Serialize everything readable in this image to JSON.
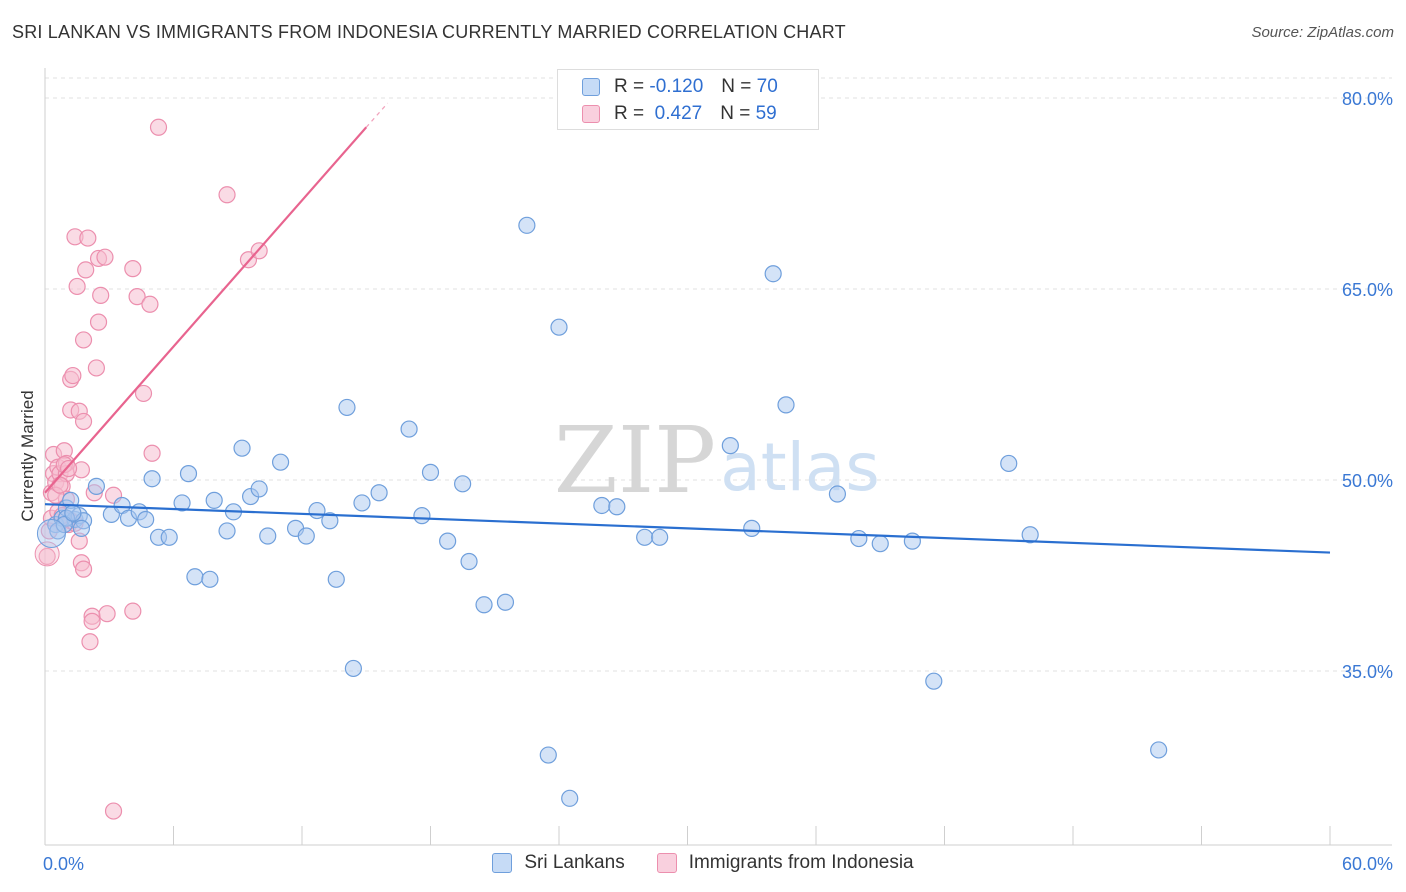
{
  "header": {
    "title": "SRI LANKAN VS IMMIGRANTS FROM INDONESIA CURRENTLY MARRIED CORRELATION CHART",
    "source": "Source: ZipAtlas.com"
  },
  "watermark": {
    "zip": "ZIP",
    "atlas": "atlas"
  },
  "legend": {
    "rows": [
      {
        "r_label": "R =",
        "r_value": "-0.120",
        "n_label": "N =",
        "n_value": "70"
      },
      {
        "r_label": "R =",
        "r_value": "0.427",
        "n_label": "N =",
        "n_value": "59"
      }
    ]
  },
  "bottom_legend": {
    "a": "Sri Lankans",
    "b": "Immigrants from Indonesia"
  },
  "colors": {
    "blue_fill": "#a9c8f0",
    "blue_stroke": "#6f9fdc",
    "blue_line": "#2a6fd0",
    "pink_fill": "#f6bdd0",
    "pink_stroke": "#ec8fae",
    "pink_line": "#e8648f",
    "tick_label": "#3a78d4",
    "grid": "#e2e2e2"
  },
  "chart_data": {
    "type": "scatter",
    "title": "SRI LANKAN VS IMMIGRANTS FROM INDONESIA CURRENTLY MARRIED CORRELATION CHART",
    "xlabel": "",
    "ylabel": "Currently Married",
    "xlim": [
      0,
      60
    ],
    "ylim": [
      20,
      82
    ],
    "x_tick_labels": [
      "0.0%",
      "60.0%"
    ],
    "y_ticks": [
      {
        "value": 80,
        "label": "80.0%"
      },
      {
        "value": 65,
        "label": "65.0%"
      },
      {
        "value": 50,
        "label": "50.0%"
      },
      {
        "value": 35,
        "label": "35.0%"
      }
    ],
    "grid": true,
    "legend_position": "top-center",
    "series": [
      {
        "name": "Sri Lankans",
        "r": -0.12,
        "n": 70,
        "trend": {
          "x": [
            0,
            60
          ],
          "y": [
            48.1,
            44.3
          ]
        },
        "points": [
          [
            0.5,
            46.5
          ],
          [
            0.8,
            47.0
          ],
          [
            1.0,
            47.8
          ],
          [
            1.2,
            48.4
          ],
          [
            1.4,
            46.9
          ],
          [
            1.6,
            47.2
          ],
          [
            1.8,
            46.8
          ],
          [
            2.4,
            49.5
          ],
          [
            3.1,
            47.3
          ],
          [
            3.6,
            48.0
          ],
          [
            3.9,
            47.0
          ],
          [
            4.4,
            47.5
          ],
          [
            4.7,
            46.9
          ],
          [
            5.0,
            50.1
          ],
          [
            5.3,
            45.5
          ],
          [
            5.8,
            45.5
          ],
          [
            6.4,
            48.2
          ],
          [
            6.7,
            50.5
          ],
          [
            7.0,
            42.4
          ],
          [
            7.7,
            42.2
          ],
          [
            7.9,
            48.4
          ],
          [
            8.5,
            46.0
          ],
          [
            8.8,
            47.5
          ],
          [
            9.2,
            52.5
          ],
          [
            9.6,
            48.7
          ],
          [
            10.0,
            49.3
          ],
          [
            10.4,
            45.6
          ],
          [
            11.0,
            51.4
          ],
          [
            11.7,
            46.2
          ],
          [
            12.2,
            45.6
          ],
          [
            12.7,
            47.6
          ],
          [
            13.3,
            46.8
          ],
          [
            13.6,
            42.2
          ],
          [
            14.1,
            55.7
          ],
          [
            14.4,
            35.2
          ],
          [
            14.8,
            48.2
          ],
          [
            15.6,
            49.0
          ],
          [
            17.0,
            54.0
          ],
          [
            17.6,
            47.2
          ],
          [
            18.0,
            50.6
          ],
          [
            18.8,
            45.2
          ],
          [
            19.5,
            49.7
          ],
          [
            19.8,
            43.6
          ],
          [
            20.5,
            40.2
          ],
          [
            21.5,
            40.4
          ],
          [
            22.5,
            70.0
          ],
          [
            23.5,
            28.4
          ],
          [
            24.0,
            62.0
          ],
          [
            24.5,
            25.0
          ],
          [
            26.0,
            48.0
          ],
          [
            26.7,
            47.9
          ],
          [
            28.0,
            45.5
          ],
          [
            28.7,
            45.5
          ],
          [
            32.0,
            52.7
          ],
          [
            33.0,
            46.2
          ],
          [
            34.0,
            66.2
          ],
          [
            34.6,
            55.9
          ],
          [
            37.0,
            48.9
          ],
          [
            38.0,
            45.4
          ],
          [
            39.0,
            45.0
          ],
          [
            40.5,
            45.2
          ],
          [
            41.5,
            34.2
          ],
          [
            45.0,
            51.3
          ],
          [
            46.0,
            45.7
          ],
          [
            52.0,
            28.8
          ],
          [
            1.0,
            47.0
          ],
          [
            0.6,
            46.0
          ],
          [
            0.9,
            46.5
          ],
          [
            1.3,
            47.4
          ],
          [
            1.7,
            46.2
          ]
        ]
      },
      {
        "name": "Immigrants from Indonesia",
        "r": 0.427,
        "n": 59,
        "trend": {
          "x": [
            0,
            15
          ],
          "y": [
            49.0,
            77.7
          ]
        },
        "trend_dashed": {
          "x": [
            15,
            16
          ],
          "y": [
            77.7,
            79.6
          ]
        },
        "points": [
          [
            0.1,
            44.0
          ],
          [
            0.2,
            46.0
          ],
          [
            0.3,
            47.0
          ],
          [
            0.3,
            49.0
          ],
          [
            0.4,
            50.5
          ],
          [
            0.4,
            52.0
          ],
          [
            0.5,
            49.8
          ],
          [
            0.6,
            51.0
          ],
          [
            0.7,
            50.5
          ],
          [
            0.8,
            49.5
          ],
          [
            0.9,
            52.3
          ],
          [
            1.0,
            51.3
          ],
          [
            1.0,
            50.5
          ],
          [
            1.1,
            46.5
          ],
          [
            1.2,
            57.9
          ],
          [
            1.2,
            55.5
          ],
          [
            1.3,
            58.2
          ],
          [
            1.4,
            69.1
          ],
          [
            1.5,
            65.2
          ],
          [
            1.6,
            55.4
          ],
          [
            1.6,
            45.2
          ],
          [
            1.7,
            43.5
          ],
          [
            1.8,
            54.6
          ],
          [
            1.8,
            61.0
          ],
          [
            1.9,
            66.5
          ],
          [
            2.0,
            69.0
          ],
          [
            2.1,
            37.3
          ],
          [
            2.2,
            39.3
          ],
          [
            2.2,
            38.9
          ],
          [
            2.3,
            49.0
          ],
          [
            2.4,
            58.8
          ],
          [
            2.5,
            62.4
          ],
          [
            2.5,
            67.4
          ],
          [
            2.6,
            64.5
          ],
          [
            2.8,
            67.5
          ],
          [
            2.9,
            39.5
          ],
          [
            3.2,
            48.8
          ],
          [
            3.2,
            24.0
          ],
          [
            4.1,
            66.6
          ],
          [
            4.1,
            39.7
          ],
          [
            4.3,
            64.4
          ],
          [
            4.6,
            56.8
          ],
          [
            4.9,
            63.8
          ],
          [
            5.0,
            52.1
          ],
          [
            5.3,
            77.7
          ],
          [
            8.5,
            72.4
          ],
          [
            9.5,
            67.3
          ],
          [
            10.0,
            68.0
          ],
          [
            1.0,
            48.5
          ],
          [
            1.2,
            46.8
          ],
          [
            0.6,
            47.5
          ],
          [
            0.9,
            51.2
          ],
          [
            0.5,
            48.8
          ],
          [
            1.4,
            46.6
          ],
          [
            1.7,
            50.8
          ],
          [
            1.8,
            43.0
          ],
          [
            0.7,
            49.6
          ],
          [
            1.1,
            50.9
          ],
          [
            0.8,
            47.2
          ]
        ]
      }
    ]
  }
}
